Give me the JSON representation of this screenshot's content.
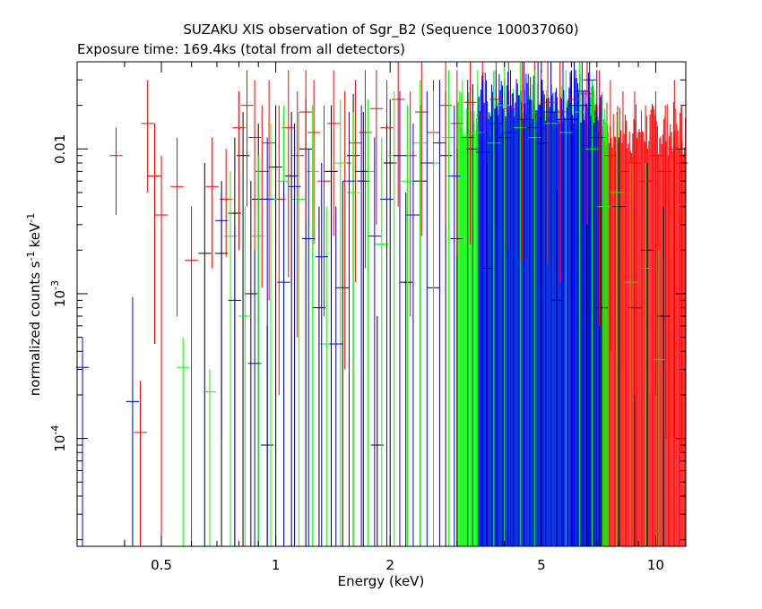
{
  "chart_data": {
    "type": "scatter",
    "title": "SUZAKU XIS observation of Sgr_B2 (Sequence 100037060)",
    "subtitle": "Exposure time: 169.4ks (total from all detectors)",
    "xlabel": "Energy (keV)",
    "ylabel": "normalized counts s",
    "ylabel_unit": "keV",
    "ylabel_exp": "-1",
    "x_scale": "log",
    "y_scale": "log",
    "xlim": [
      0.3,
      12
    ],
    "ylim": [
      1.8e-05,
      0.04
    ],
    "x_ticks": [
      {
        "value": 0.5,
        "label": "0.5"
      },
      {
        "value": 1,
        "label": "1"
      },
      {
        "value": 2,
        "label": "2"
      },
      {
        "value": 5,
        "label": "5"
      },
      {
        "value": 10,
        "label": "10"
      }
    ],
    "y_ticks": [
      {
        "value": 0.01,
        "label": "0.01",
        "base": "",
        "exp": ""
      },
      {
        "value": 0.001,
        "label": "",
        "base": "10",
        "exp": "-3"
      },
      {
        "value": 0.0001,
        "label": "",
        "base": "10",
        "exp": "-4"
      }
    ],
    "series": [
      {
        "color": "#000000",
        "points": [
          [
            0.4,
            1.8e-05,
            2e-05,
            1.8e-05
          ],
          [
            0.65,
            0.0019,
            0.008,
            1.8e-05
          ],
          [
            0.72,
            0.0019,
            0.006,
            1.8e-05
          ],
          [
            0.78,
            0.0036,
            0.012,
            1.8e-05
          ],
          [
            0.82,
            0.009,
            0.018,
            1.8e-05
          ],
          [
            0.86,
            0.001,
            0.006,
            1.8e-05
          ],
          [
            0.9,
            0.0045,
            0.015,
            1.8e-05
          ],
          [
            0.95,
            9e-05,
            0.0006,
            1.8e-05
          ],
          [
            1.0,
            0.0075,
            0.02,
            1.8e-05
          ],
          [
            1.1,
            0.0065,
            0.018,
            1.8e-05
          ],
          [
            1.2,
            0.01,
            0.022,
            1.8e-05
          ],
          [
            1.3,
            0.0008,
            0.004,
            1.8e-05
          ],
          [
            1.4,
            0.007,
            0.02,
            1.8e-05
          ],
          [
            1.5,
            0.0011,
            0.006,
            1.8e-05
          ],
          [
            1.6,
            0.009,
            0.024,
            1.8e-05
          ],
          [
            1.7,
            0.006,
            0.018,
            1.8e-05
          ],
          [
            1.85,
            9e-05,
            0.0007,
            1.8e-05
          ],
          [
            2.0,
            0.008,
            0.022,
            1.8e-05
          ],
          [
            2.2,
            0.0012,
            0.005,
            1.8e-05
          ],
          [
            2.4,
            0.006,
            0.02,
            1.8e-05
          ],
          [
            2.6,
            0.0011,
            0.005,
            1.8e-05
          ],
          [
            2.8,
            0.009,
            0.025,
            1.8e-05
          ],
          [
            3.0,
            0.0024,
            0.01,
            1.8e-05
          ],
          [
            3.3,
            0.01,
            0.028,
            1.8e-05
          ],
          [
            3.6,
            0.0015,
            0.008,
            1.8e-05
          ],
          [
            4.0,
            0.012,
            0.03,
            1.8e-05
          ],
          [
            4.5,
            0.014,
            0.03,
            1.8e-05
          ],
          [
            5.0,
            0.011,
            0.03,
            1.8e-05
          ],
          [
            5.5,
            0.0009,
            0.005,
            1.8e-05
          ],
          [
            6.0,
            0.016,
            0.035,
            1.8e-05
          ],
          [
            6.6,
            0.02,
            0.04,
            1.8e-05
          ],
          [
            7.2,
            0.0008,
            0.004,
            1.8e-05
          ],
          [
            8.0,
            0.004,
            0.012,
            1.8e-05
          ],
          [
            8.8,
            0.0008,
            0.004,
            1.8e-05
          ],
          [
            9.5,
            0.002,
            0.008,
            1.8e-05
          ],
          [
            10.5,
            0.0007,
            0.004,
            1.8e-05
          ]
        ]
      },
      {
        "color": "#ff0000",
        "points": [
          [
            0.38,
            0.009,
            0.014,
            0.0035
          ],
          [
            0.44,
            0.00011,
            0.00025,
            1.8e-05
          ],
          [
            0.46,
            0.015,
            0.03,
            0.005
          ],
          [
            0.48,
            0.0065,
            0.015,
            0.00045
          ],
          [
            0.5,
            0.0035,
            0.009,
            1.8e-05
          ],
          [
            0.55,
            0.0055,
            0.012,
            0.0007
          ],
          [
            0.6,
            0.0017,
            0.004,
            1.8e-05
          ],
          [
            0.68,
            0.0055,
            0.012,
            0.0015
          ],
          [
            0.74,
            0.0045,
            0.01,
            0.0018
          ],
          [
            0.8,
            0.014,
            0.025,
            0.002
          ],
          [
            0.84,
            0.02,
            0.035,
            0.004
          ],
          [
            0.88,
            0.012,
            0.03,
            0.001
          ],
          [
            0.92,
            0.007,
            0.02,
            0.0011
          ],
          [
            0.96,
            0.011,
            0.03,
            0.0009
          ],
          [
            1.02,
            0.0045,
            0.02,
            0.0002
          ],
          [
            1.08,
            0.014,
            0.035,
            0.0013
          ],
          [
            1.14,
            0.009,
            0.025,
            0.0005
          ],
          [
            1.2,
            0.018,
            0.035,
            0.003
          ],
          [
            1.26,
            0.013,
            0.03,
            0.0022
          ],
          [
            1.34,
            0.006,
            0.02,
            0.0007
          ],
          [
            1.42,
            0.015,
            0.035,
            0.0025
          ],
          [
            1.52,
            0.008,
            0.025,
            0.0003
          ],
          [
            1.62,
            0.011,
            0.03,
            0.0012
          ],
          [
            1.72,
            0.013,
            0.035,
            0.0015
          ],
          [
            1.84,
            0.019,
            0.035,
            0.003
          ],
          [
            1.96,
            0.014,
            0.03,
            0.0018
          ],
          [
            2.1,
            0.022,
            0.04,
            0.004
          ],
          [
            2.26,
            0.009,
            0.025,
            0.0007
          ],
          [
            2.42,
            0.018,
            0.04,
            0.0025
          ],
          [
            2.6,
            0.013,
            0.03,
            0.0011
          ],
          [
            2.8,
            0.02,
            0.04,
            0.003
          ],
          [
            3.0,
            0.015,
            0.035,
            0.0018
          ],
          [
            3.25,
            0.021,
            0.04,
            0.0022
          ],
          [
            3.5,
            0.017,
            0.04,
            0.0014
          ],
          [
            3.8,
            0.022,
            0.04,
            0.003
          ],
          [
            4.1,
            0.019,
            0.04,
            0.002
          ],
          [
            4.45,
            0.02,
            0.04,
            0.0017
          ],
          [
            4.8,
            0.017,
            0.04,
            0.0011
          ],
          [
            5.2,
            0.021,
            0.04,
            0.0016
          ],
          [
            5.6,
            0.018,
            0.04,
            0.0012
          ],
          [
            6.1,
            0.022,
            0.04,
            0.0025
          ],
          [
            6.6,
            0.024,
            0.04,
            0.003
          ],
          [
            7.1,
            0.012,
            0.035,
            0.0006
          ],
          [
            7.6,
            0.009,
            0.03,
            0.0004
          ],
          [
            8.2,
            0.007,
            0.025,
            0.0003
          ],
          [
            8.8,
            0.008,
            0.025,
            0.0002
          ],
          [
            9.4,
            0.006,
            0.02,
            0.0002
          ],
          [
            10.0,
            0.009,
            0.025,
            0.0002
          ],
          [
            10.6,
            0.007,
            0.02,
            0.0001
          ],
          [
            11.2,
            0.01,
            0.03,
            0.0001
          ],
          [
            11.7,
            0.008,
            0.02,
            8e-05
          ]
        ]
      },
      {
        "color": "#00ff00",
        "points": [
          [
            0.42,
            0.00018,
            0.00025,
            1.8e-05
          ],
          [
            0.57,
            0.00031,
            0.0005,
            1.8e-05
          ],
          [
            0.67,
            0.00021,
            0.0003,
            1.8e-05
          ],
          [
            0.76,
            0.0025,
            0.007,
            1.8e-05
          ],
          [
            0.83,
            0.0007,
            0.004,
            1.8e-05
          ],
          [
            0.9,
            0.0025,
            0.009,
            1.8e-05
          ],
          [
            0.97,
            0.0045,
            0.015,
            1.8e-05
          ],
          [
            1.05,
            0.006,
            0.02,
            1.8e-05
          ],
          [
            1.15,
            0.0045,
            0.018,
            1.8e-05
          ],
          [
            1.25,
            0.007,
            0.02,
            1.8e-05
          ],
          [
            1.36,
            0.00045,
            0.004,
            1.8e-05
          ],
          [
            1.48,
            0.008,
            0.022,
            1.8e-05
          ],
          [
            1.6,
            0.005,
            0.018,
            1.8e-05
          ],
          [
            1.75,
            0.007,
            0.022,
            1.8e-05
          ],
          [
            1.9,
            0.0022,
            0.012,
            1.8e-05
          ],
          [
            2.05,
            0.009,
            0.025,
            1.8e-05
          ],
          [
            2.22,
            0.006,
            0.02,
            1.8e-05
          ],
          [
            2.4,
            0.011,
            0.03,
            1.8e-05
          ],
          [
            2.6,
            0.008,
            0.025,
            1.8e-05
          ],
          [
            2.85,
            0.012,
            0.035,
            1.8e-05
          ],
          [
            3.1,
            0.0095,
            0.03,
            1.8e-05
          ],
          [
            3.4,
            0.013,
            0.035,
            1.8e-05
          ],
          [
            3.75,
            0.011,
            0.035,
            1.8e-05
          ],
          [
            4.0,
            0.02,
            0.04,
            1.8e-05
          ],
          [
            4.4,
            0.014,
            0.04,
            1.8e-05
          ],
          [
            4.8,
            0.012,
            0.035,
            1.8e-05
          ],
          [
            5.3,
            0.015,
            0.04,
            1.8e-05
          ],
          [
            5.8,
            0.013,
            0.035,
            1.8e-05
          ],
          [
            6.3,
            0.018,
            0.04,
            1.8e-05
          ],
          [
            6.8,
            0.01,
            0.03,
            1.8e-05
          ],
          [
            7.3,
            0.004,
            0.015,
            1.8e-05
          ],
          [
            7.9,
            0.005,
            0.018,
            1.8e-05
          ],
          [
            8.6,
            0.0012,
            0.008,
            1.8e-05
          ],
          [
            9.4,
            0.0015,
            0.008,
            1.8e-05
          ],
          [
            10.2,
            0.00035,
            0.002,
            1.8e-05
          ]
        ]
      },
      {
        "color": "#0000ff",
        "points": [
          [
            0.31,
            0.00031,
            0.0005,
            1.8e-05
          ],
          [
            0.42,
            0.00018,
            0.00095,
            1.8e-05
          ],
          [
            0.72,
            0.0032,
            0.005,
            0.0001
          ],
          [
            0.78,
            0.0009,
            0.003,
            1.8e-05
          ],
          [
            0.88,
            0.00033,
            0.002,
            1.8e-05
          ],
          [
            0.95,
            0.0045,
            0.012,
            1.8e-05
          ],
          [
            1.05,
            0.0012,
            0.006,
            1.8e-05
          ],
          [
            1.12,
            0.0055,
            0.015,
            1.8e-05
          ],
          [
            1.22,
            0.0024,
            0.01,
            1.8e-05
          ],
          [
            1.32,
            0.0018,
            0.008,
            1.8e-05
          ],
          [
            1.44,
            0.00045,
            0.004,
            1.8e-05
          ],
          [
            1.56,
            0.006,
            0.018,
            1.8e-05
          ],
          [
            1.68,
            0.007,
            0.02,
            1.8e-05
          ],
          [
            1.82,
            0.0025,
            0.012,
            1.8e-05
          ],
          [
            1.96,
            0.0045,
            0.015,
            1.8e-05
          ],
          [
            2.12,
            0.009,
            0.025,
            1.8e-05
          ],
          [
            2.3,
            0.0035,
            0.015,
            1.8e-05
          ],
          [
            2.5,
            0.008,
            0.025,
            1.8e-05
          ],
          [
            2.7,
            0.011,
            0.03,
            1.8e-05
          ],
          [
            2.95,
            0.0065,
            0.02,
            1.8e-05
          ],
          [
            3.2,
            0.012,
            0.03,
            1.8e-05
          ],
          [
            3.5,
            0.0095,
            0.03,
            1.8e-05
          ],
          [
            3.8,
            0.015,
            0.035,
            1.8e-05
          ],
          [
            4.15,
            0.013,
            0.035,
            1.8e-05
          ],
          [
            4.5,
            0.016,
            0.04,
            1.8e-05
          ],
          [
            4.9,
            0.014,
            0.04,
            1.8e-05
          ],
          [
            5.3,
            0.018,
            0.04,
            1.8e-05
          ],
          [
            5.7,
            0.016,
            0.04,
            1.8e-05
          ],
          [
            6.1,
            0.02,
            0.04,
            1.8e-05
          ],
          [
            6.4,
            0.025,
            0.04,
            1.8e-05
          ],
          [
            6.7,
            0.03,
            0.04,
            1.8e-05
          ],
          [
            7.0,
            0.012,
            0.035,
            1.8e-05
          ]
        ]
      }
    ],
    "dense_bands": [
      {
        "color": "#ff0000",
        "x_range": [
          6.0,
          12.0
        ],
        "y_top": 0.009
      },
      {
        "color": "#00ff00",
        "x_range": [
          3.0,
          7.5
        ],
        "y_top": 0.012
      },
      {
        "color": "#0000ff",
        "x_range": [
          3.4,
          7.2
        ],
        "y_top": 0.015
      }
    ]
  }
}
